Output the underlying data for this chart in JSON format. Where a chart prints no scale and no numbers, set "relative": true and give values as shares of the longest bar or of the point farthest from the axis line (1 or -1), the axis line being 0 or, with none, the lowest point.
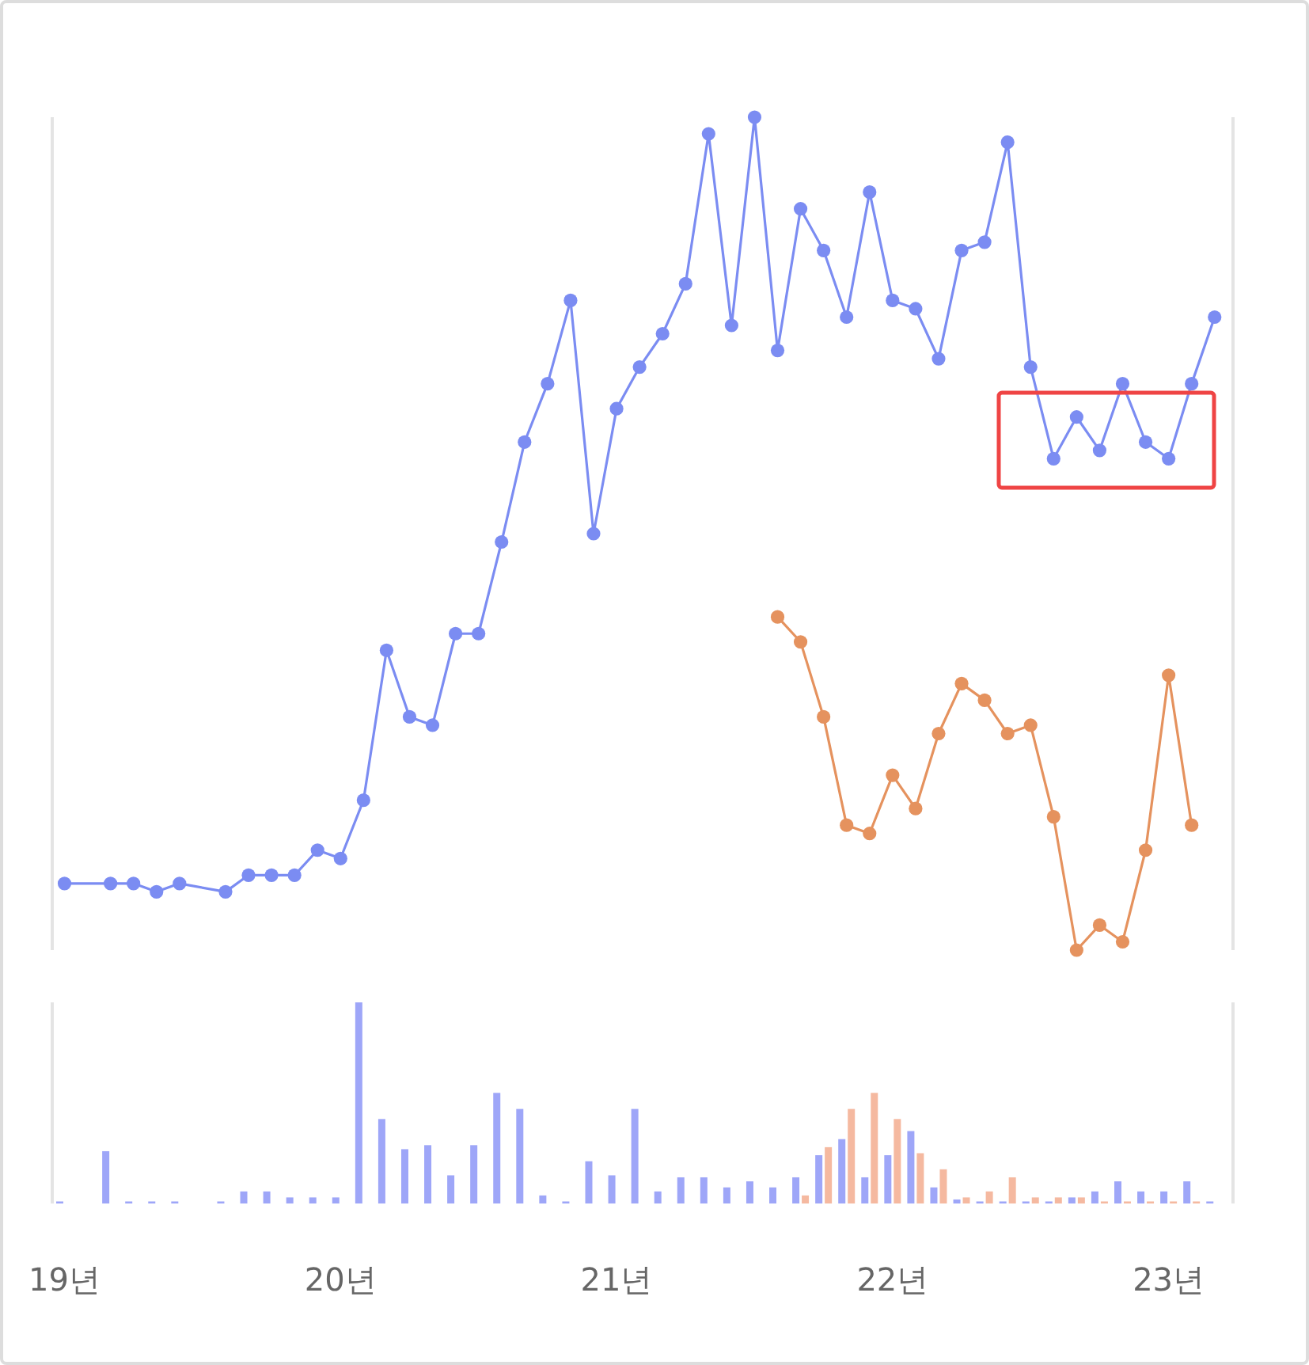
{
  "chart_data": [
    {
      "type": "line",
      "relative": true,
      "marker": "circle",
      "line_style": "solid",
      "tick_labels": false,
      "xlim": [
        "2018-12-15",
        "2023-03-25"
      ],
      "series": [
        {
          "color": "#7b8cf2",
          "x": [
            "2019-01",
            "2019-03",
            "2019-04",
            "2019-05",
            "2019-06",
            "2019-08",
            "2019-09",
            "2019-10",
            "2019-11",
            "2019-12",
            "2020-01",
            "2020-02",
            "2020-03",
            "2020-04",
            "2020-05",
            "2020-06",
            "2020-07",
            "2020-08",
            "2020-09",
            "2020-10",
            "2020-11",
            "2020-12",
            "2021-01",
            "2021-02",
            "2021-03",
            "2021-04",
            "2021-05",
            "2021-06",
            "2021-07",
            "2021-08",
            "2021-09",
            "2021-10",
            "2021-11",
            "2021-12",
            "2022-01",
            "2022-02",
            "2022-03",
            "2022-04",
            "2022-05",
            "2022-06",
            "2022-07",
            "2022-08",
            "2022-09",
            "2022-10",
            "2022-11",
            "2022-12",
            "2023-01",
            "2023-02",
            "2023-03"
          ],
          "values": [
            0.08,
            0.08,
            0.08,
            0.07,
            0.08,
            0.07,
            0.09,
            0.09,
            0.09,
            0.12,
            0.11,
            0.18,
            0.36,
            0.28,
            0.27,
            0.38,
            0.38,
            0.49,
            0.61,
            0.68,
            0.78,
            0.5,
            0.65,
            0.7,
            0.74,
            0.8,
            0.98,
            0.75,
            1,
            0.72,
            0.89,
            0.84,
            0.76,
            0.91,
            0.78,
            0.77,
            0.71,
            0.84,
            0.85,
            0.97,
            0.7,
            0.59,
            0.64,
            0.6,
            0.68,
            0.61,
            0.59,
            0.68,
            0.76
          ]
        },
        {
          "color": "#e5925e",
          "x": [
            "2021-08",
            "2021-09",
            "2021-10",
            "2021-11",
            "2021-12",
            "2022-01",
            "2022-02",
            "2022-03",
            "2022-04",
            "2022-05",
            "2022-06",
            "2022-07",
            "2022-08",
            "2022-09",
            "2022-10",
            "2022-11",
            "2022-12",
            "2023-01",
            "2023-02"
          ],
          "values": [
            0.4,
            0.37,
            0.28,
            0.15,
            0.14,
            0.21,
            0.17,
            0.26,
            0.32,
            0.3,
            0.26,
            0.27,
            0.16,
            0,
            0.03,
            0.01,
            0.12,
            0.33,
            0.15
          ]
        }
      ]
    },
    {
      "type": "bar",
      "relative": true,
      "tick_labels": "x",
      "xlim": [
        "2018-12-15",
        "2023-03-25"
      ],
      "xticks": [
        {
          "value": "2019-01",
          "label": "19년"
        },
        {
          "value": "2020-01",
          "label": "20년"
        },
        {
          "value": "2021-01",
          "label": "21년"
        },
        {
          "value": "2022-01",
          "label": "22년"
        },
        {
          "value": "2023-01",
          "label": "23년"
        }
      ],
      "series": [
        {
          "color": "#9ea6f8",
          "x": [
            "2019-01",
            "2019-03",
            "2019-04",
            "2019-05",
            "2019-06",
            "2019-08",
            "2019-09",
            "2019-10",
            "2019-11",
            "2019-12",
            "2020-01",
            "2020-02",
            "2020-03",
            "2020-04",
            "2020-05",
            "2020-06",
            "2020-07",
            "2020-08",
            "2020-09",
            "2020-10",
            "2020-11",
            "2020-12",
            "2021-01",
            "2021-02",
            "2021-03",
            "2021-04",
            "2021-05",
            "2021-06",
            "2021-07",
            "2021-08",
            "2021-09",
            "2021-10",
            "2021-11",
            "2021-12",
            "2022-01",
            "2022-02",
            "2022-03",
            "2022-04",
            "2022-05",
            "2022-06",
            "2022-07",
            "2022-08",
            "2022-09",
            "2022-10",
            "2022-11",
            "2022-12",
            "2023-01",
            "2023-02",
            "2023-03"
          ],
          "values": [
            0.01,
            0.26,
            0.01,
            0.01,
            0.01,
            0.01,
            0.06,
            0.06,
            0.03,
            0.03,
            0.03,
            1,
            0.42,
            0.27,
            0.29,
            0.14,
            0.29,
            0.55,
            0.47,
            0.04,
            0.01,
            0.21,
            0.14,
            0.47,
            0.06,
            0.13,
            0.13,
            0.08,
            0.11,
            0.08,
            0.13,
            0.24,
            0.32,
            0.13,
            0.24,
            0.36,
            0.08,
            0.02,
            0.01,
            0.01,
            0.01,
            0.01,
            0.03,
            0.06,
            0.11,
            0.06,
            0.06,
            0.11,
            0.01
          ]
        },
        {
          "color": "#f5b9a0",
          "x": [
            "2021-09",
            "2021-10",
            "2021-11",
            "2021-12",
            "2022-01",
            "2022-02",
            "2022-03",
            "2022-04",
            "2022-05",
            "2022-06",
            "2022-07",
            "2022-08",
            "2022-09",
            "2022-10",
            "2022-11",
            "2022-12",
            "2023-01",
            "2023-02"
          ],
          "values": [
            0.04,
            0.28,
            0.47,
            0.55,
            0.42,
            0.25,
            0.17,
            0.03,
            0.06,
            0.13,
            0.03,
            0.03,
            0.03,
            0.01,
            0.01,
            0.01,
            0.01,
            0.01
          ]
        }
      ]
    }
  ]
}
